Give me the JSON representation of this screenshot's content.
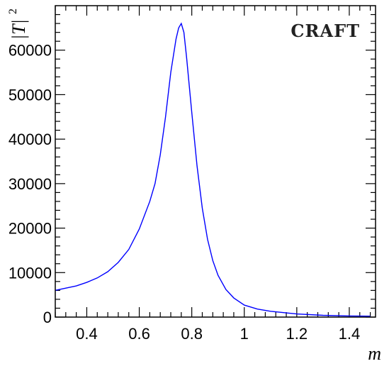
{
  "chart_data": {
    "type": "line",
    "title": "",
    "xlabel": "m",
    "ylabel_main": "|T|",
    "ylabel_exponent": "2",
    "annotation": "CRAFT",
    "xlim": [
      0.28,
      1.5
    ],
    "ylim": [
      0,
      70000
    ],
    "x_ticks": [
      0.4,
      0.6,
      0.8,
      1.0,
      1.2,
      1.4
    ],
    "x_tick_labels": [
      "0.4",
      "0.6",
      "0.8",
      "1",
      "1.2",
      "1.4"
    ],
    "y_ticks": [
      0,
      10000,
      20000,
      30000,
      40000,
      50000,
      60000
    ],
    "y_tick_labels": [
      "0",
      "10000",
      "20000",
      "30000",
      "40000",
      "50000",
      "60000"
    ],
    "grid": false,
    "line_color": "#0000ff",
    "series": [
      {
        "x": [
          0.28,
          0.32,
          0.36,
          0.4,
          0.44,
          0.48,
          0.52,
          0.56,
          0.6,
          0.64,
          0.66,
          0.68,
          0.7,
          0.72,
          0.74,
          0.75,
          0.76,
          0.77,
          0.78,
          0.8,
          0.82,
          0.84,
          0.86,
          0.88,
          0.9,
          0.93,
          0.96,
          1.0,
          1.05,
          1.1,
          1.2,
          1.3,
          1.4,
          1.48
        ],
        "y": [
          6000,
          6500,
          7000,
          7800,
          8800,
          10200,
          12300,
          15200,
          19800,
          26000,
          30000,
          36500,
          45000,
          55000,
          62500,
          65000,
          66000,
          64000,
          58500,
          46000,
          34000,
          24500,
          17500,
          12700,
          9400,
          6200,
          4300,
          2700,
          1800,
          1300,
          700,
          400,
          250,
          200
        ]
      }
    ]
  }
}
